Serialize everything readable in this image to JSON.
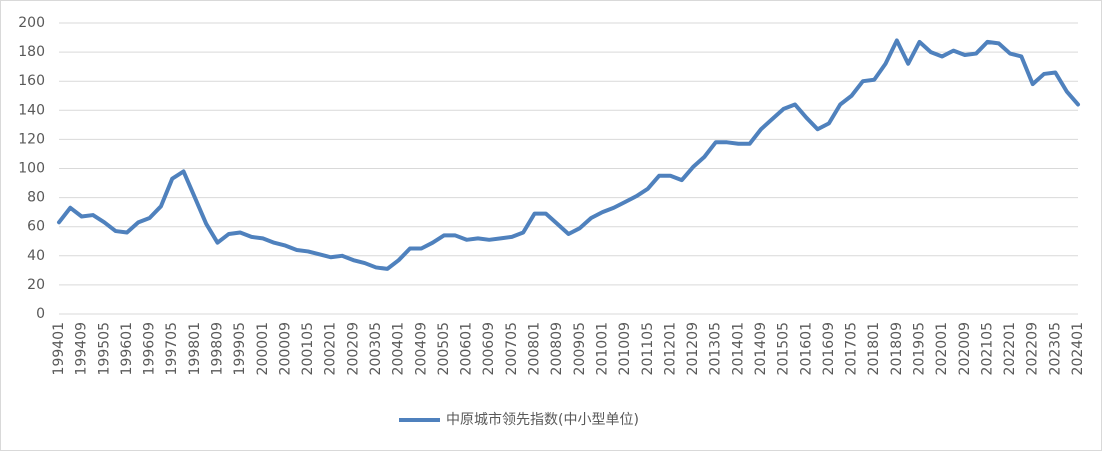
{
  "chart_data": {
    "type": "line",
    "categories": [
      "199401",
      null,
      "199409",
      null,
      "199505",
      null,
      "199601",
      null,
      "199609",
      null,
      "199705",
      null,
      "199801",
      null,
      "199809",
      null,
      "199905",
      null,
      "200001",
      null,
      "200009",
      null,
      "200105",
      null,
      "200201",
      null,
      "200209",
      null,
      "200305",
      null,
      "200401",
      null,
      "200409",
      null,
      "200505",
      null,
      "200601",
      null,
      "200609",
      null,
      "200705",
      null,
      "200801",
      null,
      "200809",
      null,
      "200905",
      null,
      "201001",
      null,
      "201009",
      null,
      "201105",
      null,
      "201201",
      null,
      "201209",
      null,
      "201305",
      null,
      "201401",
      null,
      "201409",
      null,
      "201505",
      null,
      "201601",
      null,
      "201609",
      null,
      "201705",
      null,
      "201801",
      null,
      "201809",
      null,
      "201905",
      null,
      "202001",
      null,
      "202009",
      null,
      "202105",
      null,
      "202201",
      null,
      "202209",
      null,
      "202305",
      null,
      "202401"
    ],
    "series": [
      {
        "name": "中原城市领先指数(中小型单位)",
        "color": "#4f81bd",
        "values": [
          63,
          73,
          67,
          68,
          63,
          57,
          56,
          63,
          66,
          74,
          93,
          98,
          80,
          62,
          49,
          55,
          56,
          53,
          52,
          49,
          47,
          44,
          43,
          41,
          39,
          40,
          37,
          35,
          32,
          31,
          37,
          45,
          45,
          49,
          54,
          54,
          51,
          52,
          51,
          52,
          53,
          56,
          69,
          69,
          62,
          55,
          59,
          66,
          70,
          73,
          77,
          81,
          86,
          95,
          95,
          92,
          101,
          108,
          118,
          118,
          117,
          117,
          127,
          134,
          141,
          144,
          135,
          127,
          131,
          144,
          150,
          160,
          161,
          172,
          188,
          172,
          187,
          180,
          177,
          181,
          178,
          179,
          187,
          186,
          179,
          177,
          158,
          165,
          166,
          153,
          144
        ]
      }
    ],
    "ylim": [
      0,
      200
    ],
    "yticks": [
      0,
      20,
      40,
      60,
      80,
      100,
      120,
      140,
      160,
      180,
      200
    ],
    "grid": true,
    "legend": "bottom"
  }
}
